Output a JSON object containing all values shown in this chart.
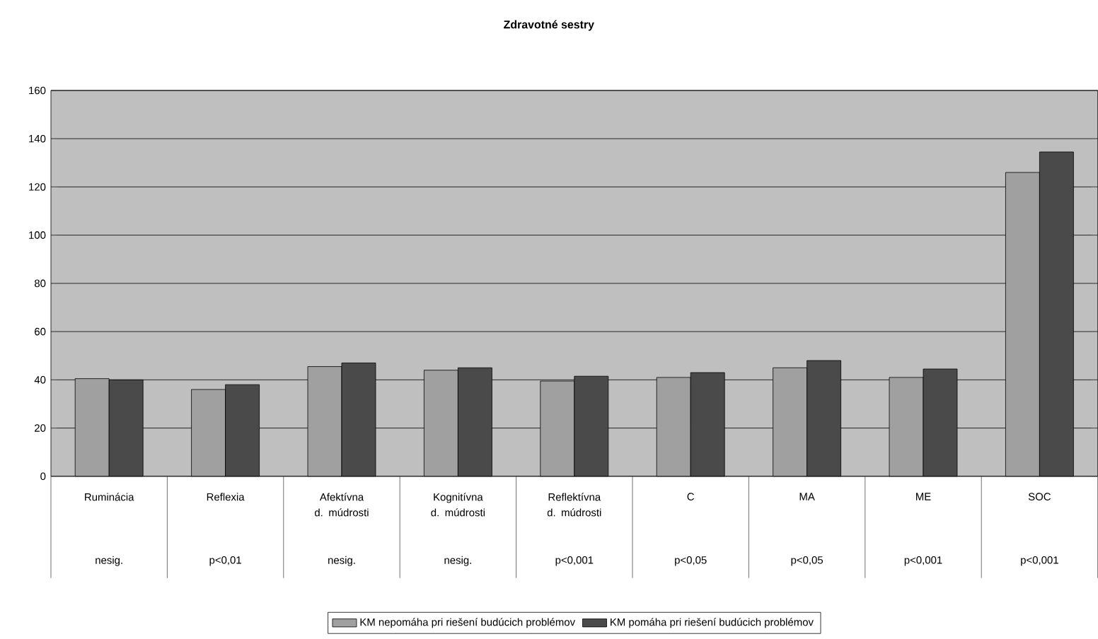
{
  "chart_data": {
    "type": "bar",
    "title": "Zdravotné sestry",
    "categories": [
      "Ruminácia",
      "Reflexia",
      "Afektívna d. múdrosti",
      "Kognitívna d. múdrosti",
      "Reflektívna d. múdrosti",
      "C",
      "MA",
      "ME",
      "SOC"
    ],
    "series": [
      {
        "name": "KM nepomáha pri riešení budúcich problémov",
        "color": "#a0a0a0",
        "values": [
          40.5,
          36,
          45.5,
          44,
          39.5,
          41,
          45,
          41,
          126
        ]
      },
      {
        "name": "KM pomáha pri riešení budúcich problémov",
        "color": "#4a4a4a",
        "values": [
          40,
          38,
          47,
          45,
          41.5,
          43,
          48,
          44.5,
          134.5
        ]
      }
    ],
    "annotations": [
      "nesig.",
      "p<0,01",
      "nesig.",
      "nesig.",
      "p<0,001",
      "p<0,05",
      "p<0,05",
      "p<0,001",
      "p<0,001"
    ],
    "ylim": [
      0,
      160
    ],
    "yticks": [
      0,
      20,
      40,
      60,
      80,
      100,
      120,
      140,
      160
    ],
    "grid": "y",
    "legend": "bottom"
  }
}
